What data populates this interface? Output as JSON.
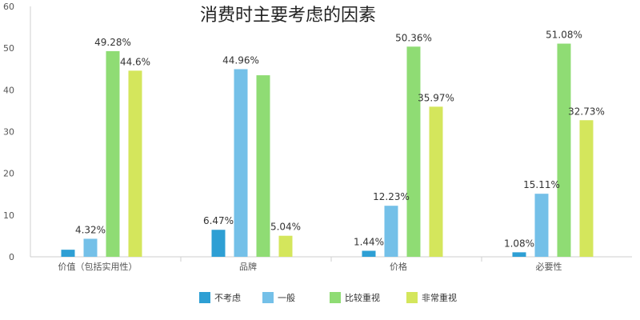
{
  "chart_data": {
    "type": "bar",
    "title": "消费时主要考虑的因素",
    "categories": [
      "价值（包括实用性）",
      "品牌",
      "价格",
      "必要性"
    ],
    "ylim": [
      0,
      60
    ],
    "yticks": [
      0,
      10,
      20,
      30,
      40,
      50,
      60
    ],
    "grid": false,
    "legend_position": "bottom",
    "series": [
      {
        "name": "不考虑",
        "color": "#2e9fd4",
        "values": [
          1.7,
          6.47,
          1.44,
          1.08
        ],
        "labels": [
          "",
          "6.47%",
          "1.44%",
          "1.08%"
        ]
      },
      {
        "name": "一般",
        "color": "#74c0e8",
        "values": [
          4.32,
          44.96,
          12.23,
          15.11
        ],
        "labels": [
          "4.32%",
          "44.96%",
          "12.23%",
          "15.11%"
        ]
      },
      {
        "name": "比较重视",
        "color": "#8fdc74",
        "values": [
          49.28,
          43.5,
          50.36,
          51.08
        ],
        "labels": [
          "49.28%",
          "",
          "50.36%",
          "51.08%"
        ]
      },
      {
        "name": "非常重视",
        "color": "#d4e65c",
        "values": [
          44.6,
          5.04,
          35.97,
          32.73
        ],
        "labels": [
          "44.6%",
          "5.04%",
          "35.97%",
          "32.73%"
        ]
      }
    ]
  }
}
